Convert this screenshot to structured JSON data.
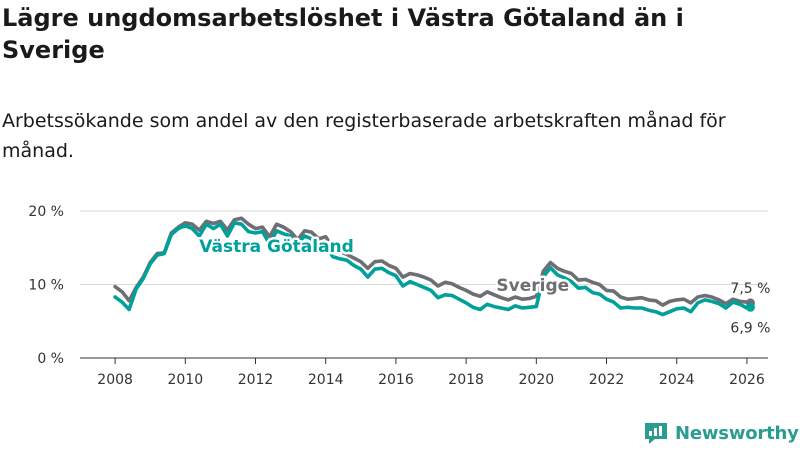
{
  "title": "Lägre ungdomsarbetslöshet i Västra Götaland än i Sverige",
  "subtitle": "Arbetssökande som andel av den registerbaserade arbetskraften månad för månad.",
  "brand": "Newsworthy",
  "colors": {
    "vg": "#00a19a",
    "se": "#6e6e73",
    "grid": "#d9d9d9",
    "axis": "#333333",
    "brand": "#2a9d8f"
  },
  "chart_data": {
    "type": "line",
    "title": "Lägre ungdomsarbetslöshet i Västra Götaland än i Sverige",
    "xlabel": "",
    "ylabel": "",
    "xlim": [
      2007.0,
      2026.6
    ],
    "ylim": [
      0,
      20
    ],
    "yticks": [
      0,
      10,
      20
    ],
    "ytick_labels": [
      "0 %",
      "10 %",
      "20 %"
    ],
    "xticks": [
      2008,
      2010,
      2012,
      2014,
      2016,
      2018,
      2020,
      2022,
      2024,
      2026
    ],
    "xtick_labels": [
      "2008",
      "2010",
      "2012",
      "2014",
      "2016",
      "2018",
      "2020",
      "2022",
      "2024",
      "2026"
    ],
    "grid": true,
    "series": [
      {
        "name": "Sverige",
        "key": "se",
        "end_label": "7,5 %",
        "x": [
          2008.0,
          2008.2,
          2008.4,
          2008.6,
          2008.8,
          2009.0,
          2009.2,
          2009.4,
          2009.6,
          2009.8,
          2010.0,
          2010.2,
          2010.4,
          2010.6,
          2010.8,
          2011.0,
          2011.2,
          2011.4,
          2011.6,
          2011.8,
          2012.0,
          2012.2,
          2012.4,
          2012.6,
          2012.8,
          2013.0,
          2013.2,
          2013.4,
          2013.6,
          2013.8,
          2014.0,
          2014.2,
          2014.4,
          2014.6,
          2014.8,
          2015.0,
          2015.2,
          2015.4,
          2015.6,
          2015.8,
          2016.0,
          2016.2,
          2016.4,
          2016.6,
          2016.8,
          2017.0,
          2017.2,
          2017.4,
          2017.6,
          2017.8,
          2018.0,
          2018.2,
          2018.4,
          2018.6,
          2018.8,
          2019.0,
          2019.2,
          2019.4,
          2019.6,
          2019.8,
          2020.0,
          2020.2,
          2020.4,
          2020.6,
          2020.8,
          2021.0,
          2021.2,
          2021.4,
          2021.6,
          2021.8,
          2022.0,
          2022.2,
          2022.4,
          2022.6,
          2022.8,
          2023.0,
          2023.2,
          2023.4,
          2023.6,
          2023.8,
          2024.0,
          2024.2,
          2024.4,
          2024.6,
          2024.8,
          2025.0,
          2025.2,
          2025.4,
          2025.6,
          2025.8,
          2026.0,
          2026.1
        ],
        "y": [
          9.7,
          9.0,
          7.8,
          9.6,
          11.0,
          13.0,
          14.2,
          14.3,
          17.0,
          17.8,
          18.4,
          18.2,
          17.4,
          18.6,
          18.3,
          18.6,
          17.4,
          18.8,
          19.0,
          18.2,
          17.6,
          17.8,
          16.5,
          18.2,
          17.8,
          17.2,
          16.1,
          17.3,
          17.1,
          16.2,
          16.5,
          15.0,
          14.5,
          14.1,
          13.6,
          13.1,
          12.2,
          13.1,
          13.2,
          12.6,
          12.2,
          11.0,
          11.5,
          11.3,
          11.0,
          10.6,
          9.8,
          10.3,
          10.1,
          9.6,
          9.2,
          8.7,
          8.4,
          9.0,
          8.6,
          8.2,
          7.9,
          8.3,
          8.0,
          8.1,
          8.4,
          11.8,
          13.0,
          12.2,
          11.8,
          11.5,
          10.6,
          10.7,
          10.3,
          10.0,
          9.2,
          9.1,
          8.3,
          8.0,
          8.1,
          8.2,
          7.9,
          7.8,
          7.2,
          7.7,
          7.9,
          8.0,
          7.5,
          8.3,
          8.5,
          8.3,
          7.9,
          7.4,
          8.0,
          7.7,
          7.6,
          7.5
        ]
      },
      {
        "name": "Västra Götaland",
        "key": "vg",
        "end_label": "6,9 %",
        "x": [
          2008.0,
          2008.2,
          2008.4,
          2008.6,
          2008.8,
          2009.0,
          2009.2,
          2009.4,
          2009.6,
          2009.8,
          2010.0,
          2010.2,
          2010.4,
          2010.6,
          2010.8,
          2011.0,
          2011.2,
          2011.4,
          2011.6,
          2011.8,
          2012.0,
          2012.2,
          2012.4,
          2012.6,
          2012.8,
          2013.0,
          2013.2,
          2013.4,
          2013.6,
          2013.8,
          2014.0,
          2014.2,
          2014.4,
          2014.6,
          2014.8,
          2015.0,
          2015.2,
          2015.4,
          2015.6,
          2015.8,
          2016.0,
          2016.2,
          2016.4,
          2016.6,
          2016.8,
          2017.0,
          2017.2,
          2017.4,
          2017.6,
          2017.8,
          2018.0,
          2018.2,
          2018.4,
          2018.6,
          2018.8,
          2019.0,
          2019.2,
          2019.4,
          2019.6,
          2019.8,
          2020.0,
          2020.2,
          2020.4,
          2020.6,
          2020.8,
          2021.0,
          2021.2,
          2021.4,
          2021.6,
          2021.8,
          2022.0,
          2022.2,
          2022.4,
          2022.6,
          2022.8,
          2023.0,
          2023.2,
          2023.4,
          2023.6,
          2023.8,
          2024.0,
          2024.2,
          2024.4,
          2024.6,
          2024.8,
          2025.0,
          2025.2,
          2025.4,
          2025.6,
          2025.8,
          2026.0,
          2026.1
        ],
        "y": [
          8.3,
          7.6,
          6.6,
          9.4,
          10.8,
          12.8,
          14.0,
          14.2,
          16.8,
          17.6,
          18.0,
          17.6,
          16.6,
          18.2,
          17.6,
          18.2,
          16.6,
          18.4,
          18.2,
          17.2,
          17.0,
          17.2,
          15.5,
          17.3,
          16.9,
          16.6,
          15.6,
          16.6,
          16.2,
          15.1,
          15.4,
          13.8,
          13.5,
          13.3,
          12.6,
          12.1,
          11.0,
          12.1,
          12.2,
          11.6,
          11.2,
          9.8,
          10.4,
          10.0,
          9.6,
          9.2,
          8.2,
          8.6,
          8.5,
          8.0,
          7.5,
          6.9,
          6.6,
          7.3,
          7.0,
          6.8,
          6.6,
          7.1,
          6.8,
          6.9,
          7.0,
          11.0,
          12.3,
          11.3,
          10.9,
          10.4,
          9.5,
          9.6,
          8.9,
          8.7,
          8.0,
          7.6,
          6.8,
          6.9,
          6.8,
          6.8,
          6.5,
          6.3,
          5.9,
          6.3,
          6.7,
          6.8,
          6.3,
          7.5,
          7.9,
          7.7,
          7.4,
          6.8,
          7.6,
          7.3,
          6.8,
          6.9
        ]
      }
    ],
    "annotations": [
      {
        "text": "Västra Götaland",
        "series": "vg",
        "x": 2012.6,
        "y": 15.1
      },
      {
        "text": "Sverige",
        "series": "se",
        "x": 2019.9,
        "y": 9.8
      }
    ]
  }
}
